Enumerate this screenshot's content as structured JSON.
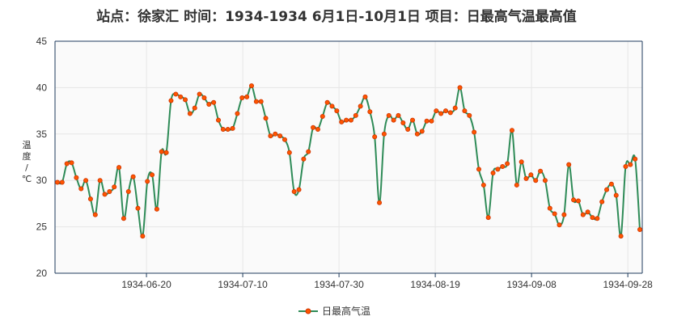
{
  "chart_data": {
    "type": "line",
    "title": "站点：徐家汇 时间：1934-1934  6月1日-10月1日 项目：日最高气温最高值",
    "xlabel": "",
    "ylabel": "温度/℃",
    "x_start": "1934-06-01",
    "x_end": "1934-10-01",
    "xticks": [
      "1934-06-20",
      "1934-07-10",
      "1934-07-30",
      "1934-08-19",
      "1934-09-08",
      "1934-09-28"
    ],
    "ylim": [
      20,
      45
    ],
    "yticks": [
      20,
      25,
      30,
      35,
      40,
      45
    ],
    "grid": true,
    "legend_position": "bottom-center",
    "colors": {
      "line": "#2e8b57",
      "marker": "#ff5500",
      "marker_edge": "#cc3300",
      "plot_bg": "#fafafa",
      "axis": "#1f3b5c"
    },
    "series": [
      {
        "name": "日最高气温",
        "values": [
          29.8,
          29.8,
          31.8,
          31.9,
          30.3,
          29.1,
          30.0,
          28.0,
          26.3,
          30.0,
          28.5,
          28.8,
          29.3,
          31.4,
          25.9,
          28.8,
          30.4,
          27.0,
          24.0,
          29.9,
          30.6,
          26.9,
          33.1,
          33.0,
          38.6,
          39.3,
          39.0,
          38.7,
          37.2,
          37.8,
          39.3,
          38.9,
          38.2,
          38.4,
          36.5,
          35.5,
          35.5,
          35.6,
          37.2,
          38.9,
          39.0,
          40.2,
          38.5,
          38.5,
          36.7,
          34.8,
          35.0,
          34.8,
          34.4,
          33.0,
          28.8,
          29.0,
          32.3,
          33.1,
          35.7,
          35.5,
          36.9,
          38.4,
          38.0,
          37.5,
          36.3,
          36.5,
          36.5,
          37.0,
          38.0,
          39.0,
          37.4,
          34.7,
          27.6,
          35.0,
          37.0,
          36.5,
          37.0,
          36.2,
          35.5,
          36.5,
          35.0,
          35.3,
          36.4,
          36.4,
          37.5,
          37.2,
          37.5,
          37.3,
          37.8,
          40.0,
          37.5,
          37.0,
          35.2,
          31.2,
          29.5,
          26.0,
          30.8,
          31.2,
          31.5,
          31.8,
          35.4,
          29.5,
          32.0,
          30.2,
          30.6,
          30.0,
          31.0,
          30.0,
          27.0,
          26.4,
          25.2,
          26.3,
          31.7,
          27.9,
          27.8,
          26.3,
          26.6,
          26.0,
          25.9,
          27.7,
          29.0,
          29.6,
          28.4,
          24.0,
          31.5,
          31.7,
          32.3,
          24.7
        ]
      }
    ]
  }
}
